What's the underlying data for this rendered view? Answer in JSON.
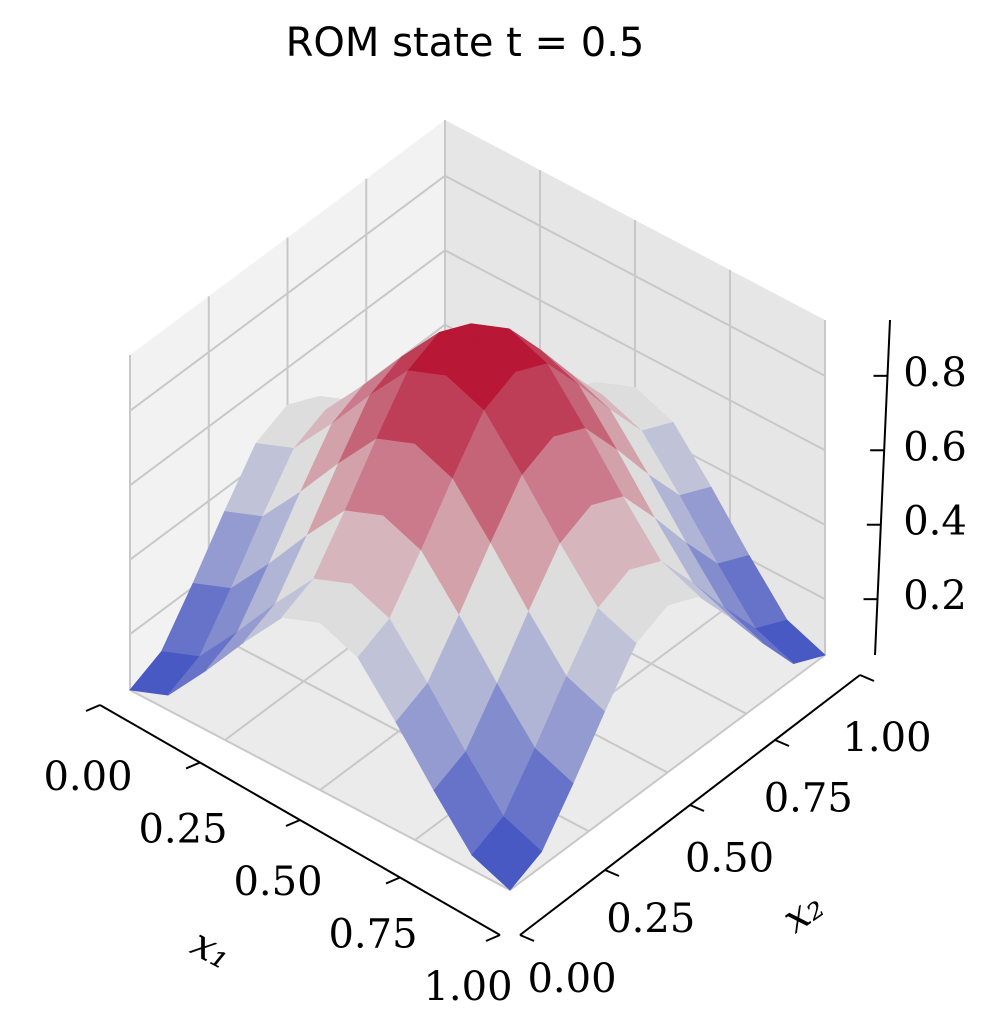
{
  "chart_data": {
    "type": "surface",
    "title": "ROM state t = 0.5",
    "xlabel": "x₁",
    "ylabel": "x₂",
    "x": [
      0,
      0.1,
      0.2,
      0.3,
      0.4,
      0.5,
      0.6,
      0.7,
      0.8,
      0.9,
      1
    ],
    "y": [
      0,
      0.1,
      0.2,
      0.3,
      0.4,
      0.5,
      0.6,
      0.7,
      0.8,
      0.9,
      1
    ],
    "z": [
      [
        0.05,
        0.09,
        0.21,
        0.34,
        0.46,
        0.5,
        0.46,
        0.34,
        0.21,
        0.09,
        0.05
      ],
      [
        0.09,
        0.13,
        0.25,
        0.38,
        0.5,
        0.54,
        0.5,
        0.38,
        0.25,
        0.13,
        0.09
      ],
      [
        0.21,
        0.25,
        0.37,
        0.5,
        0.62,
        0.66,
        0.62,
        0.5,
        0.37,
        0.25,
        0.21
      ],
      [
        0.34,
        0.38,
        0.5,
        0.63,
        0.75,
        0.79,
        0.75,
        0.63,
        0.5,
        0.38,
        0.34
      ],
      [
        0.46,
        0.5,
        0.62,
        0.75,
        0.87,
        0.91,
        0.87,
        0.75,
        0.62,
        0.5,
        0.46
      ],
      [
        0.5,
        0.54,
        0.66,
        0.79,
        0.91,
        0.95,
        0.91,
        0.79,
        0.66,
        0.54,
        0.5
      ],
      [
        0.46,
        0.5,
        0.62,
        0.75,
        0.87,
        0.91,
        0.87,
        0.75,
        0.62,
        0.5,
        0.46
      ],
      [
        0.34,
        0.38,
        0.5,
        0.63,
        0.75,
        0.79,
        0.75,
        0.63,
        0.5,
        0.38,
        0.34
      ],
      [
        0.21,
        0.25,
        0.37,
        0.5,
        0.62,
        0.66,
        0.62,
        0.5,
        0.37,
        0.25,
        0.21
      ],
      [
        0.09,
        0.13,
        0.25,
        0.38,
        0.5,
        0.54,
        0.5,
        0.38,
        0.25,
        0.13,
        0.09
      ],
      [
        0.05,
        0.09,
        0.21,
        0.34,
        0.46,
        0.5,
        0.46,
        0.34,
        0.21,
        0.09,
        0.05
      ]
    ],
    "xlim": [
      0,
      1
    ],
    "ylim": [
      0,
      1
    ],
    "zlim": [
      0.05,
      0.95
    ],
    "xticks": [
      {
        "value": 0,
        "label": "0.00"
      },
      {
        "value": 0.25,
        "label": "0.25"
      },
      {
        "value": 0.5,
        "label": "0.50"
      },
      {
        "value": 0.75,
        "label": "0.75"
      },
      {
        "value": 1,
        "label": "1.00"
      }
    ],
    "yticks": [
      {
        "value": 0,
        "label": "0.00"
      },
      {
        "value": 0.25,
        "label": "0.25"
      },
      {
        "value": 0.5,
        "label": "0.50"
      },
      {
        "value": 0.75,
        "label": "0.75"
      },
      {
        "value": 1,
        "label": "1.00"
      }
    ],
    "zticks": [
      0.2,
      0.4,
      0.6,
      0.8
    ],
    "colormap": [
      "#3b4cc0",
      "#dddddd",
      "#b40426"
    ],
    "grid": true
  }
}
